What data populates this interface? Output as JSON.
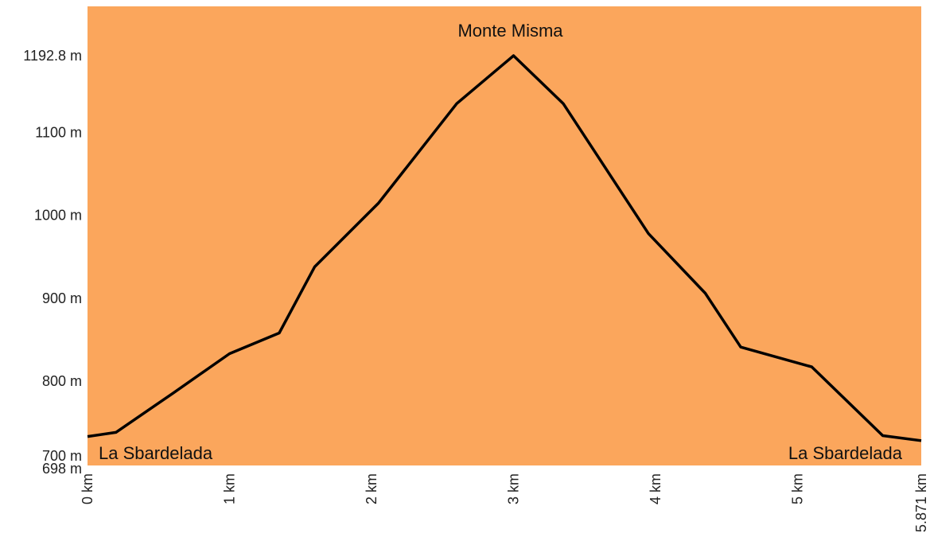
{
  "chart_data": {
    "type": "area",
    "title": "",
    "xlabel": "",
    "ylabel": "",
    "x_unit": "km",
    "y_unit": "m",
    "xlim": [
      0,
      5.871
    ],
    "ylim": [
      698,
      1192.8
    ],
    "fill_color": "#FBA65C",
    "line_color": "#000000",
    "x": [
      0,
      0.2,
      0.6,
      1.0,
      1.35,
      1.6,
      2.05,
      2.6,
      3.0,
      3.35,
      3.95,
      4.35,
      4.6,
      5.1,
      5.6,
      5.871
    ],
    "y": [
      733,
      738,
      785,
      833,
      858,
      938,
      1015,
      1135,
      1192.8,
      1135,
      978,
      906,
      841,
      817,
      734,
      728
    ],
    "y_ticks": [
      {
        "value": 1192.8,
        "label": "1192.8 m"
      },
      {
        "value": 1100,
        "label": "1100 m"
      },
      {
        "value": 1000,
        "label": "1000 m"
      },
      {
        "value": 900,
        "label": "900 m"
      },
      {
        "value": 800,
        "label": "800 m"
      },
      {
        "value": 700,
        "label": "700 m"
      },
      {
        "value": 698,
        "label": "698 m"
      }
    ],
    "x_ticks": [
      {
        "value": 0,
        "label": "0 km"
      },
      {
        "value": 1,
        "label": "1 km"
      },
      {
        "value": 2,
        "label": "2 km"
      },
      {
        "value": 3,
        "label": "3 km"
      },
      {
        "value": 4,
        "label": "4 km"
      },
      {
        "value": 5,
        "label": "5 km"
      },
      {
        "value": 5.871,
        "label": "5.871 km"
      }
    ],
    "annotations": [
      {
        "text": "Monte Misma",
        "x": 3.0,
        "anchor": "peak"
      },
      {
        "text": "La Sbardelada",
        "x": 0,
        "anchor": "bottom-left"
      },
      {
        "text": "La Sbardelada",
        "x": 5.871,
        "anchor": "bottom-right"
      }
    ]
  }
}
